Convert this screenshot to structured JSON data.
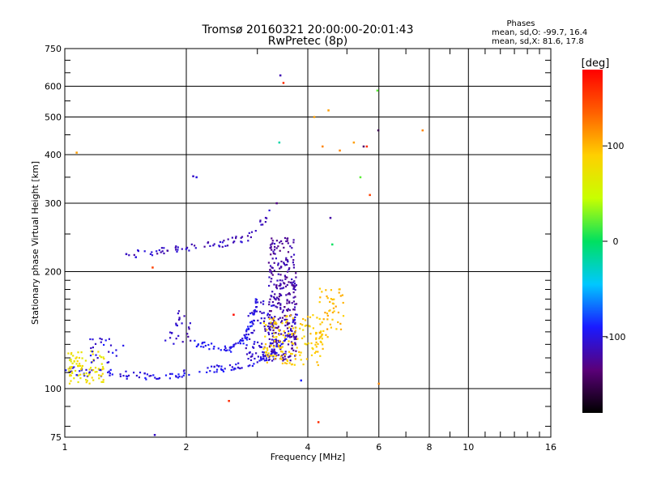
{
  "chart_data": {
    "type": "scatter",
    "title": "Tromsø 20160321 20:00:00-20:01:43",
    "subtitle": "RwPretec (8p)",
    "xlabel": "Frequency [MHz]",
    "ylabel": "Stationary phase Virtual Height [km]",
    "x_scale": "log",
    "y_scale": "log",
    "xlim": [
      1,
      16
    ],
    "ylim": [
      75,
      750
    ],
    "x_ticks": [
      1,
      2,
      4,
      6,
      8,
      10,
      16
    ],
    "x_grid": [
      1,
      2,
      4,
      6,
      8,
      10,
      16
    ],
    "x_minor_ticks": [
      3,
      5,
      7,
      9,
      11,
      12,
      13,
      14,
      15
    ],
    "y_ticks": [
      75,
      100,
      200,
      300,
      400,
      500,
      600,
      750
    ],
    "y_grid": [
      100,
      200,
      300,
      400,
      500,
      600,
      750
    ],
    "y_minor_ticks": [
      80,
      90,
      110,
      120,
      130,
      140,
      150,
      160,
      170,
      180,
      190,
      250,
      350,
      450,
      550,
      650,
      700
    ],
    "grid": true,
    "colorbar": {
      "label": "[deg]",
      "range": [
        -180,
        180
      ],
      "ticks": [
        100,
        0,
        -100
      ],
      "colors": [
        "#000000",
        "#5a0078",
        "#1a1aff",
        "#00c8ff",
        "#00e060",
        "#c8ff00",
        "#ffd000",
        "#ff6000",
        "#ff0000"
      ]
    },
    "info": {
      "heading": "Phases",
      "line1": "mean, sd,O: -99.7, 16.4",
      "line2": "mean, sd,X:  81.6, 17.8"
    },
    "traces": [
      {
        "kind": "polyline",
        "phase": -100,
        "count": 160,
        "points": [
          [
            1.0,
            113
          ],
          [
            1.1,
            110
          ],
          [
            1.2,
            110
          ],
          [
            1.35,
            109
          ],
          [
            1.5,
            108
          ],
          [
            1.7,
            108
          ],
          [
            1.9,
            109
          ],
          [
            2.1,
            110
          ],
          [
            2.3,
            112
          ],
          [
            2.5,
            113
          ],
          [
            2.7,
            115
          ],
          [
            2.9,
            117
          ],
          [
            3.1,
            120
          ],
          [
            3.3,
            125
          ],
          [
            3.45,
            131
          ],
          [
            3.6,
            140
          ],
          [
            3.75,
            155
          ]
        ]
      },
      {
        "kind": "polyline",
        "phase": -112,
        "count": 70,
        "points": [
          [
            1.45,
            224
          ],
          [
            1.55,
            222
          ],
          [
            1.7,
            225
          ],
          [
            1.85,
            228
          ],
          [
            2.0,
            231
          ],
          [
            2.2,
            232
          ],
          [
            2.4,
            236
          ],
          [
            2.6,
            240
          ],
          [
            2.8,
            244
          ],
          [
            3.0,
            258
          ],
          [
            3.1,
            270
          ],
          [
            3.2,
            284
          ]
        ]
      },
      {
        "kind": "polyline",
        "phase": -95,
        "count": 70,
        "points": [
          [
            2.1,
            130
          ],
          [
            2.3,
            128
          ],
          [
            2.5,
            126
          ],
          [
            2.65,
            128
          ],
          [
            2.8,
            135
          ],
          [
            2.9,
            148
          ],
          [
            2.95,
            160
          ],
          [
            3.0,
            172
          ]
        ]
      },
      {
        "kind": "band",
        "phase": -120,
        "count": 300,
        "x": [
          3.2,
          3.75
        ],
        "y": [
          118,
          245
        ]
      },
      {
        "kind": "band",
        "phase": -105,
        "count": 90,
        "x": [
          2.8,
          3.3
        ],
        "y": [
          118,
          170
        ]
      },
      {
        "kind": "band",
        "phase": 90,
        "count": 150,
        "x": [
          3.1,
          4.4
        ],
        "y": [
          115,
          155
        ]
      },
      {
        "kind": "band",
        "phase": 100,
        "count": 50,
        "x": [
          4.2,
          4.9
        ],
        "y": [
          135,
          182
        ]
      },
      {
        "kind": "band",
        "phase": 75,
        "count": 85,
        "x": [
          1.02,
          1.25
        ],
        "y": [
          103,
          125
        ]
      },
      {
        "kind": "band",
        "phase": -100,
        "count": 25,
        "x": [
          1.15,
          1.4
        ],
        "y": [
          115,
          135
        ]
      },
      {
        "kind": "band",
        "phase": -110,
        "count": 25,
        "x": [
          1.75,
          2.05
        ],
        "y": [
          130,
          160
        ]
      }
    ],
    "points": [
      {
        "x": 1.07,
        "y": 405,
        "phase": 110
      },
      {
        "x": 1.42,
        "y": 222,
        "phase": -110
      },
      {
        "x": 1.5,
        "y": 218,
        "phase": -100
      },
      {
        "x": 1.65,
        "y": 205,
        "phase": 150
      },
      {
        "x": 1.67,
        "y": 76,
        "phase": -110
      },
      {
        "x": 2.08,
        "y": 352,
        "phase": -110
      },
      {
        "x": 2.12,
        "y": 350,
        "phase": -100
      },
      {
        "x": 2.55,
        "y": 93,
        "phase": 160
      },
      {
        "x": 2.62,
        "y": 155,
        "phase": 175
      },
      {
        "x": 3.35,
        "y": 300,
        "phase": -130
      },
      {
        "x": 3.4,
        "y": 430,
        "phase": -20
      },
      {
        "x": 3.42,
        "y": 640,
        "phase": -115
      },
      {
        "x": 3.48,
        "y": 612,
        "phase": 160
      },
      {
        "x": 3.85,
        "y": 105,
        "phase": -90
      },
      {
        "x": 4.15,
        "y": 500,
        "phase": 110
      },
      {
        "x": 4.25,
        "y": 82,
        "phase": 160
      },
      {
        "x": 4.35,
        "y": 420,
        "phase": 120
      },
      {
        "x": 4.5,
        "y": 520,
        "phase": 110
      },
      {
        "x": 4.55,
        "y": 275,
        "phase": -120
      },
      {
        "x": 4.6,
        "y": 235,
        "phase": 0
      },
      {
        "x": 4.8,
        "y": 410,
        "phase": 120
      },
      {
        "x": 5.2,
        "y": 430,
        "phase": 110
      },
      {
        "x": 5.4,
        "y": 350,
        "phase": 20
      },
      {
        "x": 5.5,
        "y": 420,
        "phase": -140
      },
      {
        "x": 5.6,
        "y": 420,
        "phase": 160
      },
      {
        "x": 5.7,
        "y": 315,
        "phase": 150
      },
      {
        "x": 5.95,
        "y": 585,
        "phase": 20
      },
      {
        "x": 5.98,
        "y": 462,
        "phase": -150
      },
      {
        "x": 6.0,
        "y": 103,
        "phase": 120
      },
      {
        "x": 7.7,
        "y": 462,
        "phase": 120
      }
    ]
  }
}
